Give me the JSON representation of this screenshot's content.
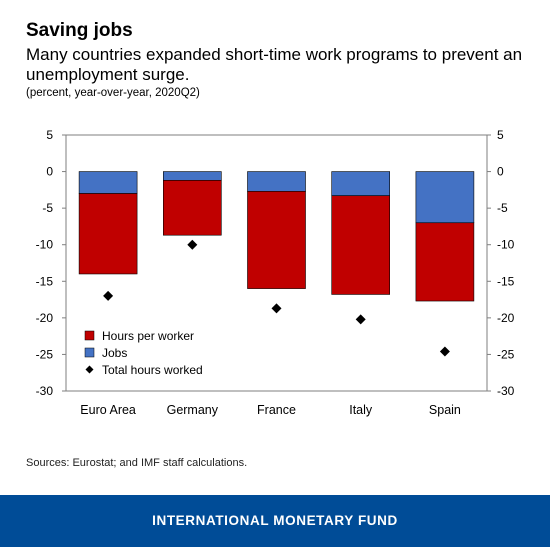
{
  "header": {
    "title": "Saving jobs",
    "subtitle": "Many countries expanded short-time work programs to prevent an unemployment surge.",
    "unit": "(percent, year-over-year, 2020Q2)"
  },
  "source": "Sources: Eurostat; and IMF staff calculations.",
  "footer": {
    "brand": "INTERNATIONAL MONETARY FUND"
  },
  "chart_data": {
    "type": "bar",
    "stacked": true,
    "categories": [
      "Euro Area",
      "Germany",
      "France",
      "Italy",
      "Spain"
    ],
    "series": [
      {
        "name": "Jobs",
        "type": "bar",
        "color": "#4472c4",
        "values": [
          -3.0,
          -1.2,
          -2.7,
          -3.3,
          -7.0
        ]
      },
      {
        "name": "Hours per worker",
        "type": "bar",
        "color": "#c00000",
        "values": [
          -11.0,
          -7.5,
          -13.3,
          -13.5,
          -10.7
        ]
      },
      {
        "name": "Total hours worked",
        "type": "scatter",
        "marker": "diamond",
        "color": "#000000",
        "values": [
          -17.0,
          -10.0,
          -18.7,
          -20.2,
          -24.6
        ]
      }
    ],
    "legend": [
      "Hours per worker",
      "Jobs",
      "Total hours worked"
    ],
    "legend_position": "bottom-left",
    "ylim": [
      -30,
      5
    ],
    "yticks": [
      5,
      0,
      -5,
      -10,
      -15,
      -20,
      -25,
      -30
    ],
    "secondary_axis": true,
    "grid": false
  }
}
